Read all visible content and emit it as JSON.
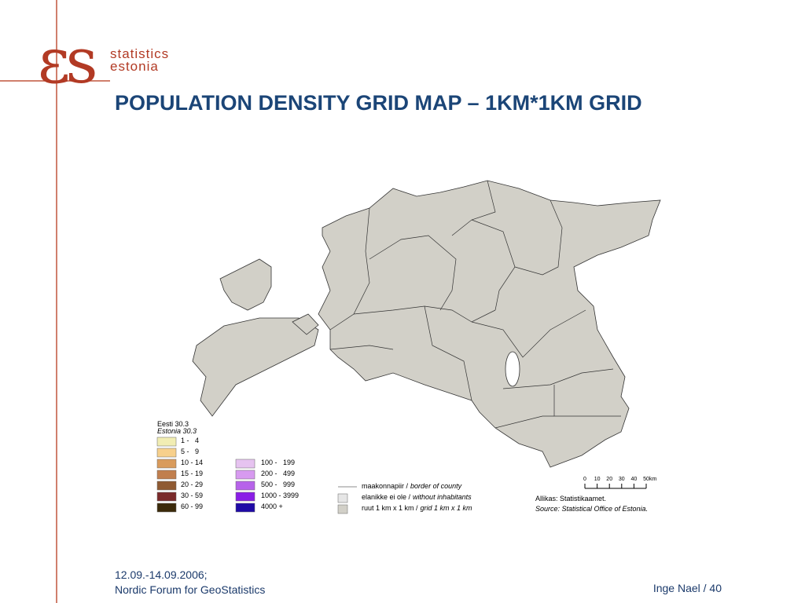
{
  "logo": {
    "mark": "εs",
    "line1": "statistics",
    "line2": "estonia"
  },
  "title": "POPULATION DENSITY GRID MAP – 1KM*1KM GRID",
  "legend": {
    "heading": "Eesti 30.3",
    "heading_en": "Estonia 30.3",
    "classes_low": [
      {
        "label": "1 -   4",
        "color": "#f1edb3"
      },
      {
        "label": "5 -   9",
        "color": "#f7d08c"
      },
      {
        "label": "10 - 14",
        "color": "#d99b5c"
      },
      {
        "label": "15 - 19",
        "color": "#c17f4e"
      },
      {
        "label": "20 - 29",
        "color": "#8f5a32"
      },
      {
        "label": "30 - 59",
        "color": "#7a2a2a"
      },
      {
        "label": "60 - 99",
        "color": "#3b2a0a"
      }
    ],
    "classes_high": [
      {
        "label": "100 -   199",
        "color": "#e6c3f0"
      },
      {
        "label": "200 -   499",
        "color": "#d79af0"
      },
      {
        "label": "500 -   999",
        "color": "#b763ea"
      },
      {
        "label": "1000 - 3999",
        "color": "#8a1ee6"
      },
      {
        "label": "4000 +",
        "color": "#1f0aa6"
      }
    ]
  },
  "key": [
    {
      "label": "maakonnapiir /",
      "label_en": "border of county"
    },
    {
      "label": "elanikke ei ole /",
      "label_en": "without inhabitants",
      "color": "#e6e6e6"
    },
    {
      "label": "ruut 1 km x 1 km /",
      "label_en": "grid 1 km x 1 km",
      "color": "#d2d0c8"
    }
  ],
  "scale": {
    "ticks": [
      0,
      10,
      20,
      30,
      40,
      50
    ],
    "unit": "km"
  },
  "source": {
    "et": "Allikas: Statistikaamet.",
    "en": "Source: Statistical Office of Estonia."
  },
  "footer": {
    "date": "12.09.-14.09.2006;",
    "event": "Nordic Forum for GeoStatistics",
    "author": "Inge Nael / 40"
  }
}
